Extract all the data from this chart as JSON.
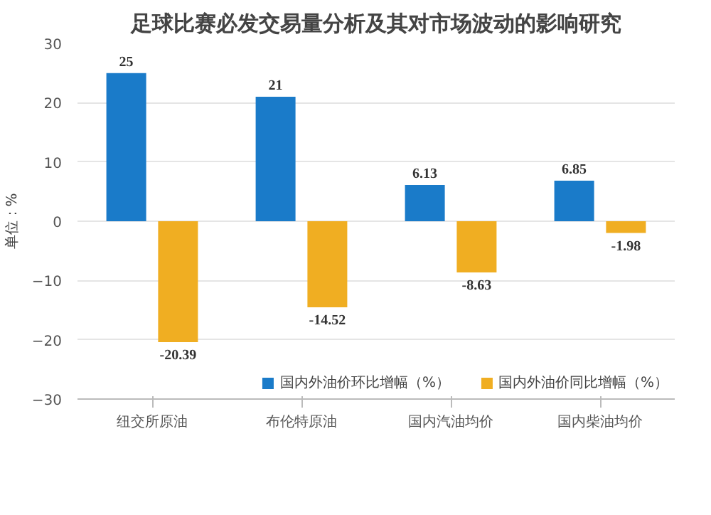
{
  "chart_data": {
    "type": "bar",
    "title": "足球比赛必发交易量分析及其对市场波动的影响研究",
    "ylabel": "单位：%",
    "categories": [
      "纽交所原油",
      "布伦特原油",
      "国内汽油均价",
      "国内柴油均价"
    ],
    "series": [
      {
        "name": "国内外油价环比增幅（%）",
        "color": "#1a7bc9",
        "values": [
          25,
          21,
          6.13,
          6.85
        ]
      },
      {
        "name": "国内外油价同比增幅（%）",
        "color": "#f0ae22",
        "values": [
          -20.39,
          -14.52,
          -8.63,
          -1.98
        ]
      }
    ],
    "ylim": [
      -30,
      30
    ],
    "yticks": [
      -30,
      -20,
      -10,
      0,
      10,
      20,
      30
    ],
    "grid": "y",
    "legend": "bottom",
    "data_labels": true
  }
}
